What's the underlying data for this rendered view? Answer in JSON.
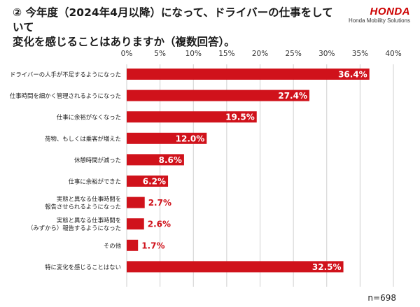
{
  "header": {
    "title_line1": "② 今年度（2024年4月以降）になって、ドライバーの仕事をしていて",
    "title_line2": "変化を感じることはありますか（複数回答）。"
  },
  "logo": {
    "brand": "HONDA",
    "sub": "Honda Mobility Solutions"
  },
  "note": "n=698",
  "colors": {
    "bar": "#d0121b",
    "grid": "#cfcfcf",
    "label_light": "#ffffff",
    "label_dark": "#d0121b"
  },
  "chart_data": {
    "type": "bar",
    "orientation": "horizontal",
    "categories": [
      [
        "ドライバーの人手が不足するようになった"
      ],
      [
        "仕事時間を細かく管理されるようになった"
      ],
      [
        "仕事に余裕がなくなった"
      ],
      [
        "荷物、もしくは乗客が増えた"
      ],
      [
        "休憩時間が減った"
      ],
      [
        "仕事に余裕ができた"
      ],
      [
        "実態と異なる仕事時間を",
        "報告させられるようになった"
      ],
      [
        "実態と異なる仕事時間を",
        "（みずから）報告するようになった"
      ],
      [
        "その他"
      ],
      [
        "特に変化を感じることはない"
      ]
    ],
    "values": [
      36.4,
      27.4,
      19.5,
      12.0,
      8.6,
      6.2,
      2.7,
      2.6,
      1.7,
      32.5
    ],
    "value_labels": [
      "36.4%",
      "27.4%",
      "19.5%",
      "12.0%",
      "8.6%",
      "6.2%",
      "2.7%",
      "2.6%",
      "1.7%",
      "32.5%"
    ],
    "xlim": [
      0,
      40
    ],
    "xticks": [
      0,
      5,
      10,
      15,
      20,
      25,
      30,
      35,
      40
    ],
    "xtick_labels": [
      "0%",
      "5%",
      "10%",
      "15%",
      "20%",
      "25%",
      "30%",
      "35%",
      "40%"
    ],
    "tick_position": "top",
    "grid": true,
    "legend": "none"
  }
}
